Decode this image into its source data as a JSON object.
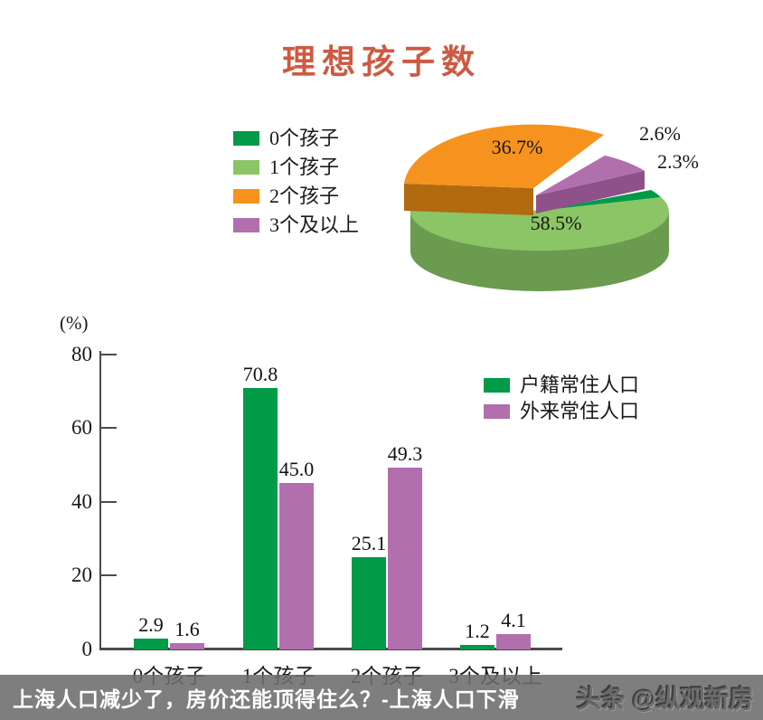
{
  "title": "理想孩子数",
  "title_color": "#cd5a42",
  "colors": {
    "green_dark": "#009a48",
    "green_light": "#8bc565",
    "orange": "#f6921e",
    "purple": "#b26fae",
    "pie_green_side": "#6a9b4f",
    "pie_purple_side": "#8e5189",
    "pie_purple_rim": "#9a5a93",
    "pie_orange_side": "#b26a10",
    "axis": "#4a4a4a",
    "text": "#1a1a1a"
  },
  "chart_data": [
    {
      "type": "pie",
      "style": "3d-exploded",
      "title": "理想孩子数",
      "labels": [
        "0个孩子",
        "1个孩子",
        "2个孩子",
        "3个及以上"
      ],
      "values": [
        2.3,
        58.5,
        36.7,
        2.6
      ],
      "value_labels": [
        "2.3%",
        "58.5%",
        "36.7%",
        "2.6%"
      ],
      "colors": [
        "#009a48",
        "#8bc565",
        "#f6921e",
        "#b26fae"
      ],
      "legend_position": "left"
    },
    {
      "type": "bar",
      "categories": [
        "0个孩子",
        "1个孩子",
        "2个孩子",
        "3个及以上"
      ],
      "series": [
        {
          "name": "户籍常住人口",
          "color": "#009a48",
          "values": [
            2.9,
            70.8,
            25.1,
            1.2
          ]
        },
        {
          "name": "外来常住人口",
          "color": "#b26fae",
          "values": [
            1.6,
            45.0,
            49.3,
            4.1
          ]
        }
      ],
      "ylabel": "(%)",
      "ylim": [
        0,
        80
      ],
      "yticks": [
        0,
        20,
        40,
        60,
        80
      ],
      "grid": false,
      "legend_position": "right-top"
    }
  ],
  "footer": {
    "caption": "上海人口减少了，房价还能顶得住么？-上海人口下滑",
    "watermark": "头条 @纵观新房"
  }
}
